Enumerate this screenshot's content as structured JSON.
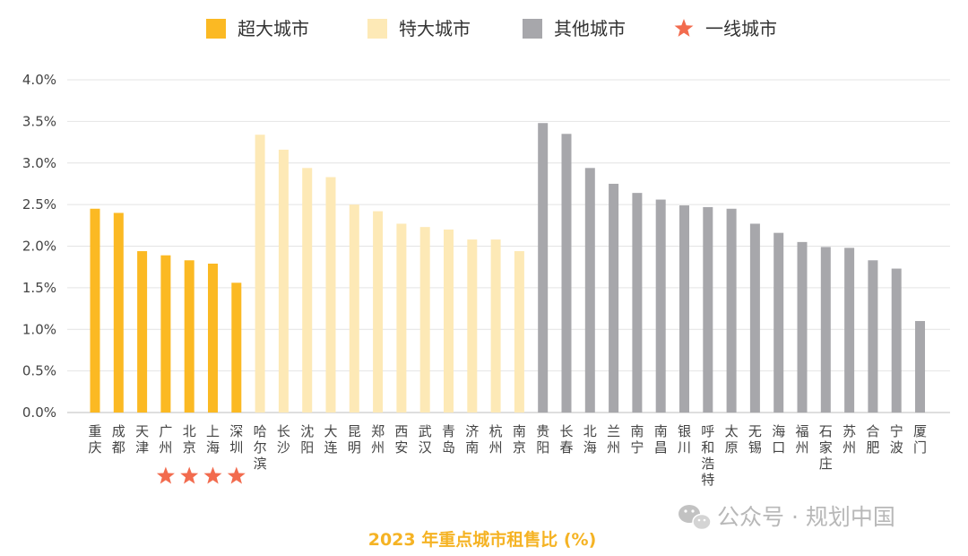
{
  "chart_data": {
    "type": "bar",
    "title": "2023 年重点城市租售比 (%)",
    "xlabel": "",
    "ylabel": "",
    "ylim": [
      0,
      4.0
    ],
    "y_ticks": [
      "0.0%",
      "0.5%",
      "1.0%",
      "1.5%",
      "2.0%",
      "2.5%",
      "3.0%",
      "3.5%",
      "4.0%"
    ],
    "grid": true,
    "legend_position": "top-center",
    "legend": [
      {
        "label": "超大城市",
        "color": "#FBB923",
        "marker": "square"
      },
      {
        "label": "特大城市",
        "color": "#FDE9B6",
        "marker": "square"
      },
      {
        "label": "其他城市",
        "color": "#A7A7AB",
        "marker": "square"
      },
      {
        "label": "一线城市",
        "color": "#F26B4E",
        "marker": "star"
      }
    ],
    "categories": [
      "重庆",
      "成都",
      "天津",
      "广州",
      "北京",
      "上海",
      "深圳",
      "哈尔滨",
      "长沙",
      "沈阳",
      "大连",
      "昆明",
      "郑州",
      "西安",
      "武汉",
      "青岛",
      "济南",
      "杭州",
      "南京",
      "贵阳",
      "长春",
      "北海",
      "兰州",
      "南宁",
      "南昌",
      "银川",
      "呼和浩特",
      "太原",
      "无锡",
      "海口",
      "福州",
      "石家庄",
      "苏州",
      "合肥",
      "宁波",
      "厦门"
    ],
    "values": [
      2.45,
      2.4,
      1.94,
      1.89,
      1.83,
      1.79,
      1.56,
      3.34,
      3.16,
      2.94,
      2.83,
      2.5,
      2.42,
      2.27,
      2.23,
      2.2,
      2.08,
      2.08,
      1.94,
      3.48,
      3.35,
      2.94,
      2.75,
      2.64,
      2.56,
      2.49,
      2.47,
      2.45,
      2.27,
      2.16,
      2.05,
      1.99,
      1.98,
      1.83,
      1.73,
      1.1
    ],
    "groups": [
      "超大城市",
      "超大城市",
      "超大城市",
      "超大城市",
      "超大城市",
      "超大城市",
      "超大城市",
      "特大城市",
      "特大城市",
      "特大城市",
      "特大城市",
      "特大城市",
      "特大城市",
      "特大城市",
      "特大城市",
      "特大城市",
      "特大城市",
      "特大城市",
      "特大城市",
      "其他城市",
      "其他城市",
      "其他城市",
      "其他城市",
      "其他城市",
      "其他城市",
      "其他城市",
      "其他城市",
      "其他城市",
      "其他城市",
      "其他城市",
      "其他城市",
      "其他城市",
      "其他城市",
      "其他城市",
      "其他城市",
      "其他城市"
    ],
    "tier1": [
      "广州",
      "北京",
      "上海",
      "深圳"
    ]
  },
  "watermark": "公众号 · 规划中国",
  "watermark_icon": "wechat-icon"
}
